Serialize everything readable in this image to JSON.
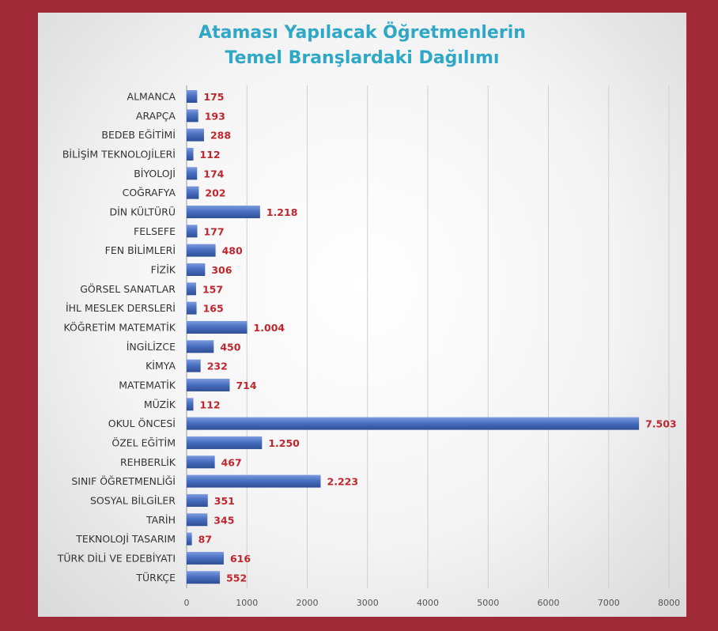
{
  "chart_data": {
    "type": "bar",
    "orientation": "horizontal",
    "title": [
      "Ataması Yapılacak Öğretmenlerin",
      "Temel Branşlardaki Dağılımı"
    ],
    "categories": [
      "ALMANCA",
      "ARAPÇA",
      "BEDEB EĞİTİMİ",
      "BİLİŞİM TEKNOLOJİLERİ",
      "BİYOLOJİ",
      "COĞRAFYA",
      "DİN KÜLTÜRÜ",
      "FELSEFE",
      "FEN BİLİMLERİ",
      "FİZİK",
      "GÖRSEL SANATLAR",
      "İHL MESLEK DERSLERİ",
      "KÖĞRETİM MATEMATİK",
      "İNGİLİZCE",
      "KİMYA",
      "MATEMATİK",
      "MÜZİK",
      "OKUL ÖNCESİ",
      "ÖZEL EĞİTİM",
      "REHBERLİK",
      "SINIF ÖĞRETMENLİĞİ",
      "SOSYAL BİLGİLER",
      "TARİH",
      "TEKNOLOJİ TASARIM",
      "TÜRK DİLİ VE EDEBİYATI",
      "TÜRKÇE"
    ],
    "values": [
      175,
      193,
      288,
      112,
      174,
      202,
      1218,
      177,
      480,
      306,
      157,
      165,
      1004,
      450,
      232,
      714,
      112,
      7503,
      1250,
      467,
      2223,
      351,
      345,
      87,
      616,
      552
    ],
    "value_labels": [
      "175",
      "193",
      "288",
      "112",
      "174",
      "202",
      "1.218",
      "177",
      "480",
      "306",
      "157",
      "165",
      "1.004",
      "450",
      "232",
      "714",
      "112",
      "7.503",
      "1.250",
      "467",
      "2.223",
      "351",
      "345",
      "87",
      "616",
      "552"
    ],
    "xlim": [
      0,
      8000
    ],
    "xticks": [
      "0",
      "1000",
      "2000",
      "3000",
      "4000",
      "5000",
      "6000",
      "7000",
      "8000"
    ],
    "grid": true,
    "colors": {
      "bar": "#4a70c0",
      "bar_light": "#7d9be0",
      "bar_dark": "#2f4f96",
      "value_label": "#c0262e",
      "category_label": "#333333",
      "tick_label": "#555555",
      "title": "#2fa7c7",
      "frame": "#a02a38"
    }
  }
}
